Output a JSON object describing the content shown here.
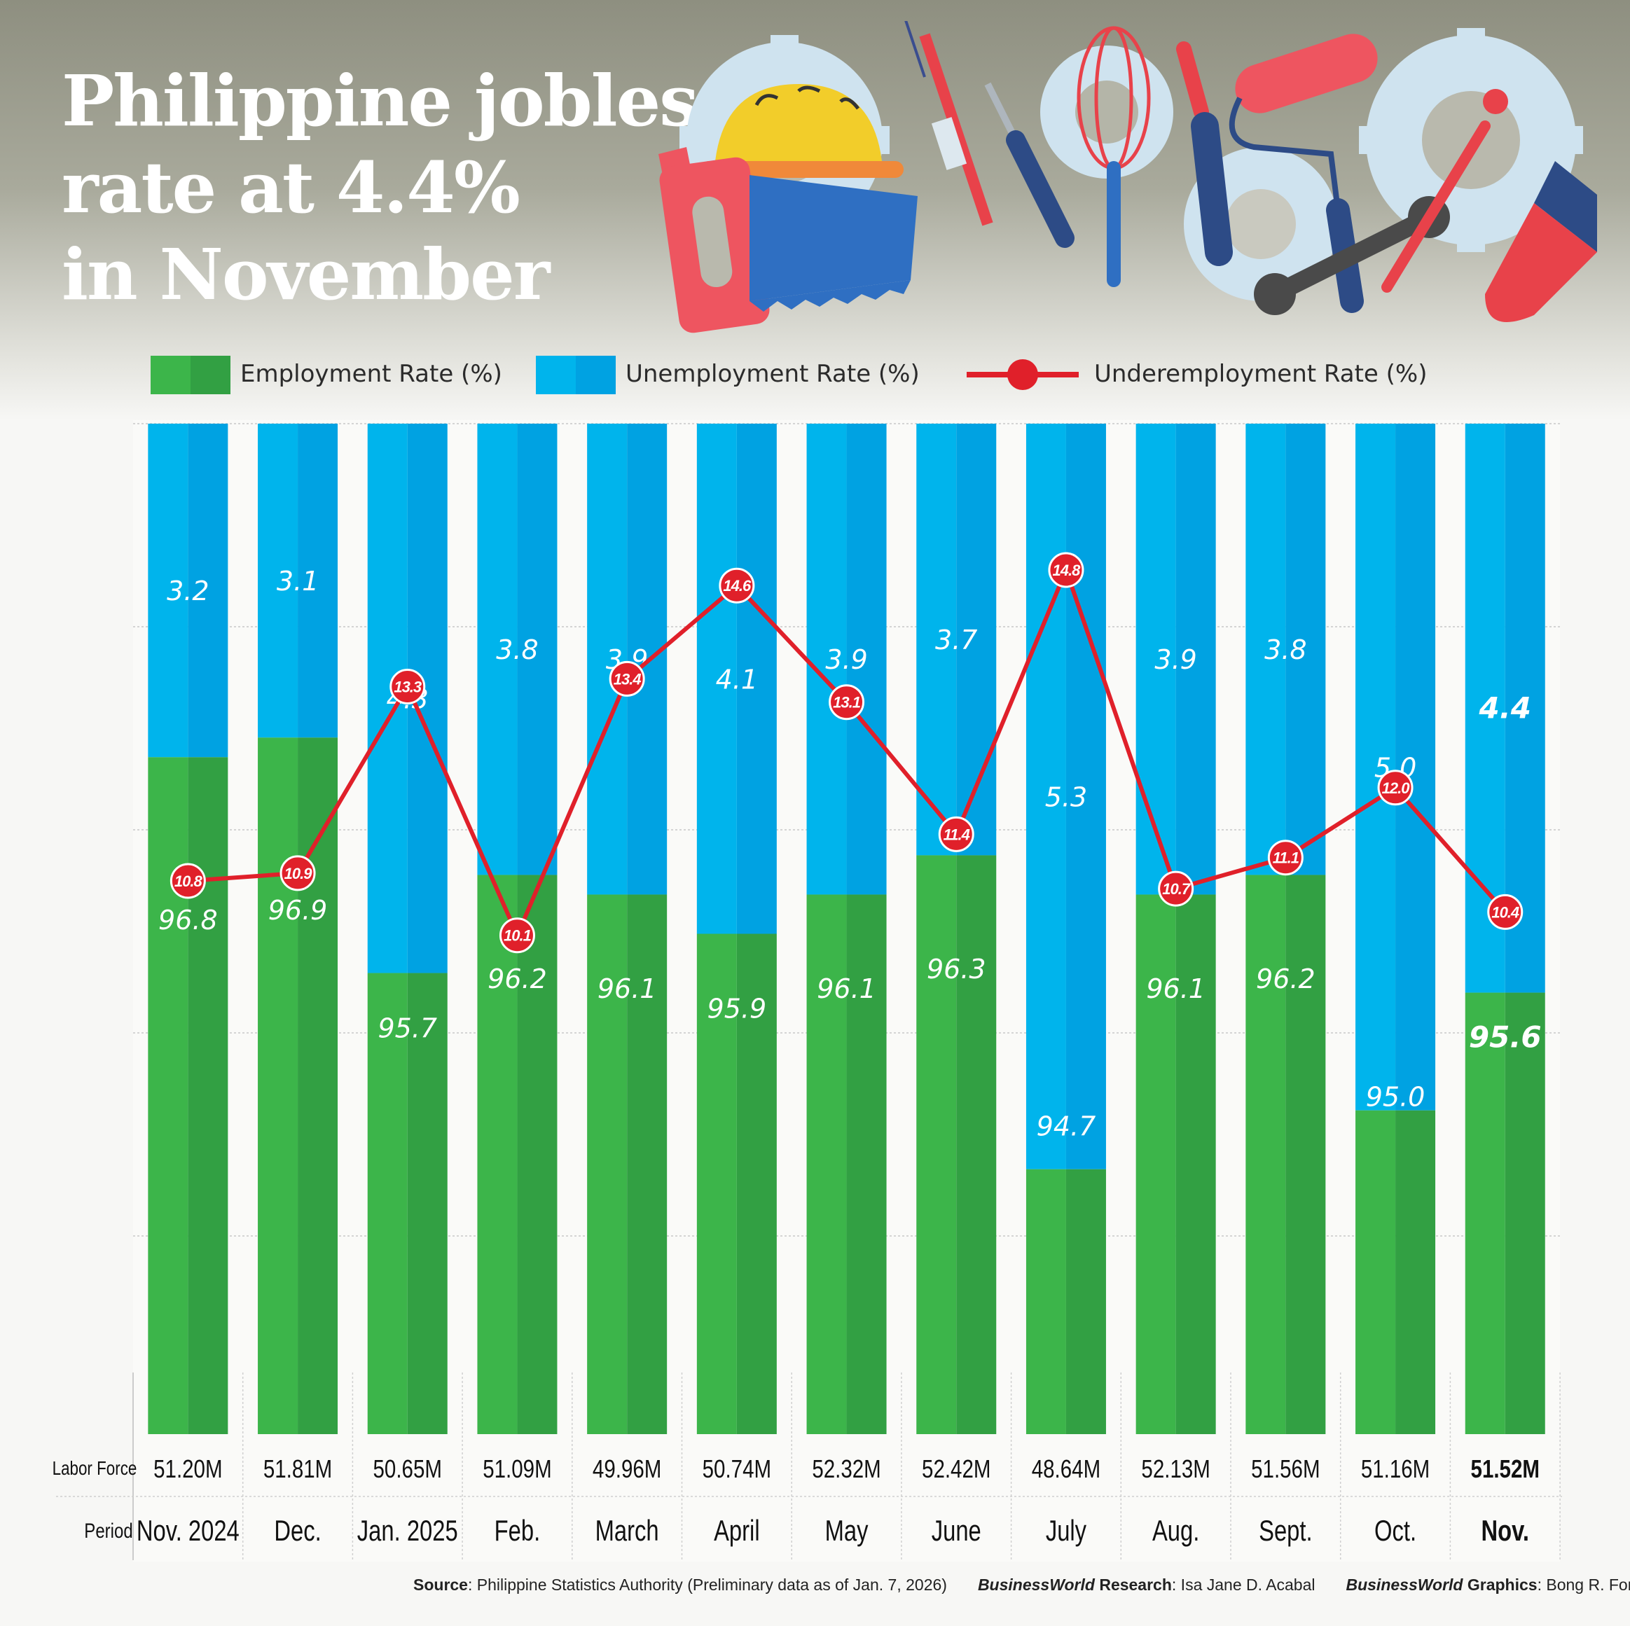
{
  "title_lines": [
    "Philippine jobless",
    "rate at 4.4%",
    "in November"
  ],
  "legend": {
    "employment": "Employment  Rate (%)",
    "unemployment": "Unemployment Rate (%)",
    "underemployment": "Underemployment Rate (%)"
  },
  "colors": {
    "employment": "#3cb54a",
    "employment_dark": "#32a043",
    "unemployment": "#00b4ec",
    "unemployment_dark": "#00a2e2",
    "underemployment": "#e0202a"
  },
  "row_labels": {
    "labor_force": "Labor Force",
    "period": "Period"
  },
  "chart_data": {
    "type": "bar",
    "stacked": true,
    "highlight_last": true,
    "categories": [
      "Nov. 2024",
      "Dec.",
      "Jan. 2025",
      "Feb.",
      "March",
      "April",
      "May",
      "June",
      "July",
      "Aug.",
      "Sept.",
      "Oct.",
      "Nov."
    ],
    "series": [
      {
        "name": "Employment  Rate (%)",
        "values": [
          96.8,
          96.9,
          95.7,
          96.2,
          96.1,
          95.9,
          96.1,
          96.3,
          94.7,
          96.1,
          96.2,
          95.0,
          95.6
        ]
      },
      {
        "name": "Unemployment Rate (%)",
        "values": [
          3.2,
          3.1,
          4.3,
          3.8,
          3.9,
          4.1,
          3.9,
          3.7,
          5.3,
          3.9,
          3.8,
          5.0,
          4.4
        ]
      },
      {
        "name": "Underemployment Rate (%)",
        "type": "line",
        "values": [
          10.8,
          10.9,
          13.3,
          10.1,
          13.4,
          14.6,
          13.1,
          11.4,
          14.8,
          10.7,
          11.1,
          12.0,
          10.4
        ]
      }
    ],
    "labor_force": [
      "51.20M",
      "51.81M",
      "50.65M",
      "51.09M",
      "49.96M",
      "50.74M",
      "52.32M",
      "52.42M",
      "48.64M",
      "52.13M",
      "51.56M",
      "51.16M",
      "51.52M"
    ],
    "grid": true
  },
  "footer": {
    "source_label": "Source",
    "source_text": ": Philippine Statistics Authority (Preliminary data as of Jan. 7, 2026)",
    "research_brand": "BusinessWorld",
    "research_label": " Research",
    "research_name": ": Isa Jane D. Acabal",
    "graphics_brand": "BusinessWorld",
    "graphics_label": " Graphics",
    "graphics_name": ": Bong R. Fortin"
  },
  "illustration_icons": [
    "gear-icon",
    "hard-hat-icon",
    "syringe-icon",
    "screwdriver-icon",
    "whisk-icon",
    "paint-roller-icon",
    "paintbrush-icon",
    "saw-icon",
    "wrench-icon"
  ]
}
